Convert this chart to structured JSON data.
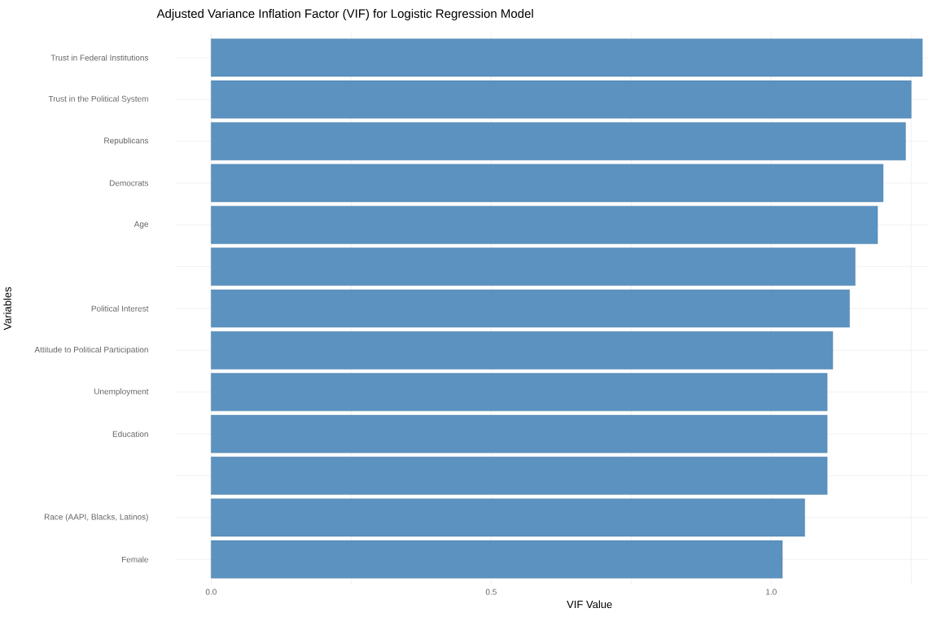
{
  "chart_data": {
    "type": "bar",
    "orientation": "horizontal",
    "title": "Adjusted Variance Inflation Factor (VIF) for Logistic Regression Model",
    "xlabel": "VIF Value",
    "ylabel": "Variables",
    "categories": [
      "Trust in Federal Institutions",
      "Trust in the Political System",
      "Republicans",
      "Democrats",
      "Age",
      null,
      "Political Interest",
      "Attitude to Political Participation",
      "Unemployment",
      "Education",
      null,
      "Race (AAPI, Blacks, Latinos)",
      "Female"
    ],
    "values": [
      1.27,
      1.25,
      1.24,
      1.2,
      1.19,
      1.15,
      1.14,
      1.11,
      1.1,
      1.1,
      1.1,
      1.06,
      1.02
    ],
    "color": "#5b92c0",
    "xlim": [
      -0.063,
      1.28
    ],
    "xticks": [
      {
        "value": 0,
        "label": "0.0"
      },
      {
        "value": 0.25,
        "label": null
      },
      {
        "value": 0.5,
        "label": "0.5"
      },
      {
        "value": 0.75,
        "label": null
      },
      {
        "value": 1.0,
        "label": "1.0"
      },
      {
        "value": 1.25,
        "label": null
      }
    ],
    "grid": true
  }
}
